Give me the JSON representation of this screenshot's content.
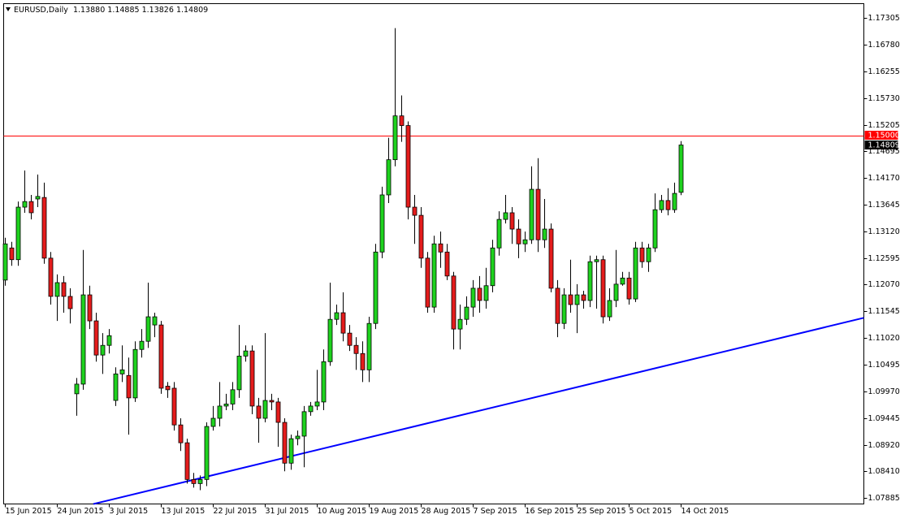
{
  "chart_data": {
    "type": "candlestick",
    "title": "EURUSD,Daily",
    "ohlc_labels": [
      "1.13880",
      "1.14885",
      "1.13826",
      "1.14809"
    ],
    "categories": [
      "15 Jun 2015",
      null,
      null,
      null,
      null,
      null,
      null,
      null,
      "24 Jun 2015",
      null,
      null,
      null,
      null,
      null,
      null,
      null,
      "3 Jul 2015",
      null,
      null,
      null,
      null,
      null,
      null,
      null,
      "13 Jul 2015",
      null,
      null,
      null,
      null,
      null,
      null,
      null,
      "22 Jul 2015",
      null,
      null,
      null,
      null,
      null,
      null,
      null,
      "31 Jul 2015",
      null,
      null,
      null,
      null,
      null,
      null,
      null,
      "10 Aug 2015",
      null,
      null,
      null,
      null,
      null,
      null,
      null,
      "19 Aug 2015",
      null,
      null,
      null,
      null,
      null,
      null,
      null,
      "28 Aug 2015",
      null,
      null,
      null,
      null,
      null,
      null,
      null,
      "7 Sep 2015",
      null,
      null,
      null,
      null,
      null,
      null,
      null,
      "16 Sep 2015",
      null,
      null,
      null,
      null,
      null,
      null,
      null,
      "25 Sep 2015",
      null,
      null,
      null,
      null,
      null,
      null,
      null,
      "5 Oct 2015",
      null,
      null,
      null,
      null,
      null,
      null,
      null,
      "14 Oct 2015"
    ],
    "open": [
      1.1216,
      1.1279,
      1.1256,
      1.1359,
      1.137,
      1.1375,
      1.1378,
      1.1259,
      1.1184,
      1.1211,
      1.1184,
      1.0993,
      1.1012,
      1.1187,
      1.1136,
      1.1069,
      1.1088,
      1.098,
      1.1032,
      1.1029,
      1.0985,
      1.108,
      1.1096,
      1.1128,
      1.1128,
      1.1008,
      1.1004,
      1.0932,
      1.0897,
      1.0825,
      1.0817,
      1.0825,
      1.0929,
      1.0945,
      1.0969,
      1.0973,
      1.1001,
      1.1067,
      1.1077,
      1.0969,
      1.0945,
      1.098,
      1.0977,
      1.0937,
      1.0857,
      1.0905,
      1.091,
      1.0958,
      1.0969,
      1.0977,
      1.1056,
      1.1139,
      1.1152,
      1.1112,
      1.1088,
      1.1072,
      1.104,
      1.1131,
      1.1271,
      1.1383,
      1.1452,
      1.1538,
      1.1519,
      1.1359,
      1.1343,
      1.1259,
      1.1163,
      1.1287,
      1.1271,
      1.1224,
      1.112,
      1.1139,
      1.1163,
      1.12,
      1.1176,
      1.1205,
      1.1279,
      1.1335,
      1.1348,
      1.1316,
      1.1287,
      1.1295,
      1.1394,
      1.1295,
      1.1316,
      1.12,
      1.1131,
      1.1187,
      1.1168,
      1.1187,
      1.1176,
      1.1252,
      1.1256,
      1.1144,
      1.1176,
      1.1208,
      1.122,
      1.1179,
      1.1279,
      1.1252,
      1.1279,
      1.1354,
      1.1372,
      1.1354,
      1.1388
    ],
    "high": [
      1.1299,
      1.1291,
      1.137,
      1.1431,
      1.1383,
      1.1423,
      1.1407,
      1.1271,
      1.1227,
      1.1224,
      1.12,
      1.1024,
      1.1275,
      1.1205,
      1.1152,
      1.1112,
      1.112,
      1.1045,
      1.1088,
      1.1064,
      1.1096,
      1.112,
      1.1211,
      1.1152,
      1.1136,
      1.1016,
      1.1016,
      1.0945,
      1.0905,
      1.0838,
      1.0833,
      1.0937,
      1.0969,
      1.1016,
      1.0993,
      1.1016,
      1.1128,
      1.1088,
      1.1088,
      1.0985,
      1.1112,
      1.0993,
      1.0985,
      1.0945,
      1.0913,
      1.0921,
      1.0969,
      1.0977,
      1.104,
      1.108,
      1.1211,
      1.1168,
      1.1192,
      1.1128,
      1.1104,
      1.1096,
      1.1144,
      1.1287,
      1.1399,
      1.1495,
      1.171,
      1.1578,
      1.1527,
      1.1383,
      1.1359,
      1.1271,
      1.1303,
      1.1311,
      1.1287,
      1.1232,
      1.1168,
      1.1184,
      1.1216,
      1.1224,
      1.124,
      1.1295,
      1.1351,
      1.1383,
      1.1359,
      1.1335,
      1.1311,
      1.1439,
      1.1455,
      1.1375,
      1.1327,
      1.1216,
      1.12,
      1.1256,
      1.1208,
      1.1195,
      1.1264,
      1.1264,
      1.1264,
      1.12,
      1.1275,
      1.1232,
      1.1232,
      1.1291,
      1.1291,
      1.1287,
      1.1386,
      1.1383,
      1.1396,
      1.1407,
      1.14885
    ],
    "low": [
      1.1205,
      1.1244,
      1.1244,
      1.1348,
      1.1335,
      1.1359,
      1.1248,
      1.1168,
      1.1136,
      1.1152,
      1.1131,
      1.095,
      1.1001,
      1.112,
      1.1056,
      1.1032,
      1.1072,
      1.0969,
      1.1016,
      1.0913,
      1.0977,
      1.1064,
      1.1083,
      1.1104,
      1.0993,
      1.0985,
      1.0921,
      1.0881,
      1.0817,
      1.0809,
      1.0804,
      1.0812,
      1.0921,
      1.0929,
      1.0961,
      1.0961,
      1.0985,
      1.1056,
      1.0953,
      1.0897,
      1.0937,
      1.0961,
      1.0889,
      1.0841,
      1.0844,
      1.0892,
      1.0849,
      1.095,
      1.0961,
      1.0961,
      1.1048,
      1.1128,
      1.1096,
      1.1077,
      1.104,
      1.1016,
      1.1016,
      1.112,
      1.1259,
      1.1367,
      1.1439,
      1.1487,
      1.1335,
      1.1287,
      1.124,
      1.1152,
      1.1152,
      1.124,
      1.1216,
      1.108,
      1.108,
      1.1128,
      1.1144,
      1.1152,
      1.116,
      1.1192,
      1.1264,
      1.1327,
      1.1287,
      1.1259,
      1.1271,
      1.1287,
      1.1271,
      1.1279,
      1.1192,
      1.1104,
      1.112,
      1.1152,
      1.1112,
      1.116,
      1.1163,
      1.116,
      1.1131,
      1.1136,
      1.1163,
      1.1205,
      1.1168,
      1.1173,
      1.124,
      1.1232,
      1.1271,
      1.1348,
      1.1343,
      1.1348,
      1.13826
    ],
    "close": [
      1.1287,
      1.1256,
      1.1359,
      1.137,
      1.1348,
      1.138,
      1.1259,
      1.1184,
      1.1211,
      1.1184,
      1.116,
      1.1012,
      1.1187,
      1.1136,
      1.1069,
      1.1088,
      1.1107,
      1.1032,
      1.104,
      1.0985,
      1.108,
      1.1096,
      1.1144,
      1.1144,
      1.1004,
      1.1001,
      1.0932,
      1.0897,
      1.0825,
      1.0817,
      1.0825,
      1.0929,
      1.0945,
      1.0969,
      1.0973,
      1.1001,
      1.1067,
      1.1077,
      1.0969,
      1.0945,
      1.098,
      1.0977,
      1.0937,
      1.0857,
      1.0905,
      1.091,
      1.0958,
      1.0969,
      1.0977,
      1.1056,
      1.1139,
      1.1152,
      1.1112,
      1.1088,
      1.1072,
      1.104,
      1.1131,
      1.1271,
      1.1383,
      1.1452,
      1.1538,
      1.1519,
      1.1359,
      1.1343,
      1.1259,
      1.1163,
      1.1287,
      1.1271,
      1.1224,
      1.112,
      1.1139,
      1.1163,
      1.12,
      1.1176,
      1.1205,
      1.1279,
      1.1335,
      1.1348,
      1.1316,
      1.1287,
      1.1295,
      1.1394,
      1.1295,
      1.1316,
      1.12,
      1.1131,
      1.1187,
      1.1168,
      1.1187,
      1.1176,
      1.1252,
      1.1256,
      1.1144,
      1.1176,
      1.1208,
      1.122,
      1.1179,
      1.1279,
      1.1252,
      1.1279,
      1.1354,
      1.1372,
      1.1354,
      1.1386,
      1.14809
    ],
    "up_color": "#1ed21e",
    "down_color": "#e41c1c",
    "ylim": [
      1.0777,
      1.1758
    ],
    "yticks": [
      1.17305,
      {
        "value": 1.1678,
        "label": "1.16780"
      },
      1.16255,
      {
        "value": 1.1573,
        "label": "1.15730"
      },
      1.15205,
      1.14695,
      {
        "value": 1.1417,
        "label": "1.14170"
      },
      1.13645,
      {
        "value": 1.1312,
        "label": "1.13120"
      },
      1.12595,
      {
        "value": 1.1207,
        "label": "1.12070"
      },
      1.11545,
      {
        "value": 1.1102,
        "label": "1.11020"
      },
      1.10495,
      {
        "value": 1.0997,
        "label": "1.09970"
      },
      1.09445,
      {
        "value": 1.0892,
        "label": "1.08920"
      },
      {
        "value": 1.0841,
        "label": "1.08410"
      },
      1.07885
    ],
    "hline": {
      "value": 1.15,
      "label": "1.15000",
      "color": "#ff0000"
    },
    "last_price": {
      "value": 1.14809,
      "label": "1.14809"
    },
    "trendline": {
      "values": [
        1.0777,
        1.1142
      ],
      "color": "#0000ff"
    }
  }
}
